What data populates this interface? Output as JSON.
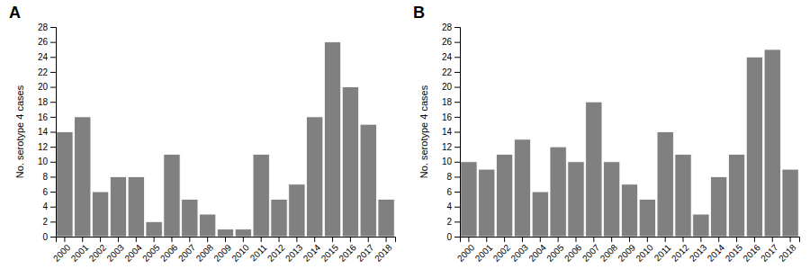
{
  "chart_data": [
    {
      "type": "bar",
      "title": "A",
      "ylabel": "No. serotype 4 cases",
      "categories": [
        "2000",
        "2001",
        "2002",
        "2003",
        "2004",
        "2005",
        "2006",
        "2007",
        "2008",
        "2009",
        "2010",
        "2011",
        "2012",
        "2013",
        "2014",
        "2015",
        "2016",
        "2017",
        "2018"
      ],
      "values": [
        14,
        16,
        6,
        8,
        8,
        2,
        11,
        5,
        3,
        1,
        1,
        11,
        5,
        7,
        16,
        26,
        20,
        15,
        5
      ],
      "color": "#808080",
      "ylim": [
        0,
        28
      ],
      "yticks": [
        0,
        2,
        4,
        6,
        8,
        10,
        12,
        14,
        16,
        18,
        20,
        22,
        24,
        26,
        28
      ]
    },
    {
      "type": "bar",
      "title": "B",
      "ylabel": "No. serotype 4 cases",
      "categories": [
        "2000",
        "2001",
        "2002",
        "2003",
        "2004",
        "2005",
        "2006",
        "2007",
        "2008",
        "2009",
        "2010",
        "2011",
        "2012",
        "2013",
        "2014",
        "2015",
        "2016",
        "2017",
        "2018"
      ],
      "values": [
        10,
        9,
        11,
        13,
        6,
        12,
        10,
        18,
        10,
        7,
        5,
        14,
        11,
        3,
        8,
        11,
        24,
        25,
        9
      ],
      "color": "#808080",
      "ylim": [
        0,
        28
      ],
      "yticks": [
        0,
        2,
        4,
        6,
        8,
        10,
        12,
        14,
        16,
        18,
        20,
        22,
        24,
        26,
        28
      ]
    }
  ]
}
